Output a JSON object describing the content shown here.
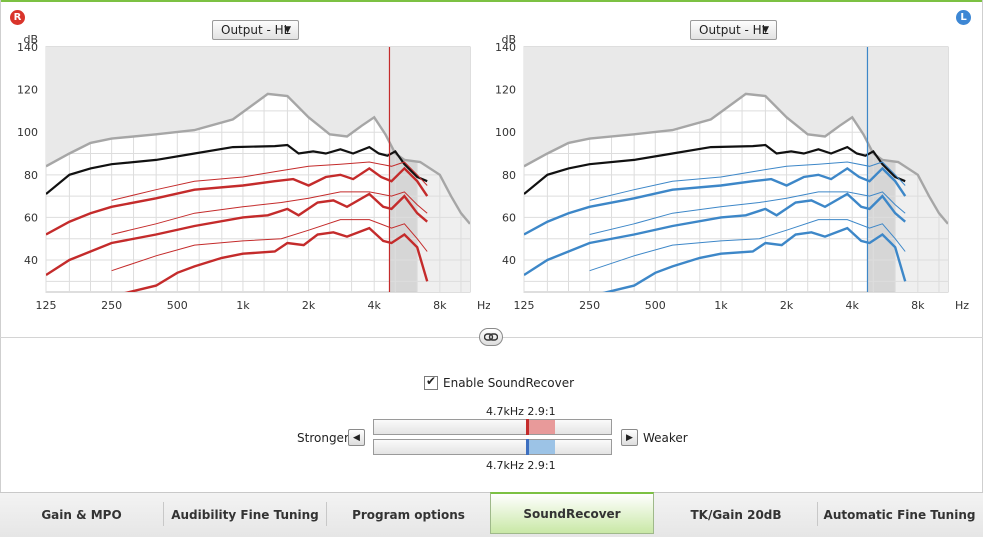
{
  "badges": {
    "right": "R",
    "left": "L"
  },
  "right_chart": {
    "dropdown": "Output - HL",
    "y_unit": "dB",
    "y_ticks": [
      "140",
      "120",
      "100",
      "80",
      "60",
      "40"
    ],
    "x_unit": "Hz",
    "x_ticks": [
      "125",
      "250",
      "500",
      "1k",
      "2k",
      "4k",
      "8k"
    ],
    "color": "#c42b2b"
  },
  "left_chart": {
    "dropdown": "Output - HL",
    "y_unit": "dB",
    "y_ticks": [
      "140",
      "120",
      "100",
      "80",
      "60",
      "40"
    ],
    "x_unit": "Hz",
    "x_ticks": [
      "125",
      "250",
      "500",
      "1k",
      "2k",
      "4k",
      "8k"
    ],
    "color": "#3d87c8"
  },
  "chart_data": {
    "type": "line",
    "ylabel": "dB",
    "xlabel": "Hz",
    "x_scale": "log",
    "ylim": [
      25,
      140
    ],
    "xlim": [
      125,
      11000
    ],
    "curves": {
      "upper_gray": [
        [
          125,
          84
        ],
        [
          160,
          90
        ],
        [
          200,
          95
        ],
        [
          250,
          97
        ],
        [
          400,
          99
        ],
        [
          600,
          101
        ],
        [
          900,
          106
        ],
        [
          1300,
          118
        ],
        [
          1600,
          117
        ],
        [
          2000,
          107
        ],
        [
          2500,
          99
        ],
        [
          3000,
          98
        ],
        [
          3500,
          103
        ],
        [
          4000,
          107
        ],
        [
          4500,
          99
        ],
        [
          5000,
          90
        ],
        [
          5500,
          87
        ],
        [
          6500,
          86
        ],
        [
          8000,
          80
        ],
        [
          9000,
          70
        ],
        [
          10000,
          62
        ],
        [
          11000,
          57
        ]
      ],
      "black": [
        [
          125,
          71
        ],
        [
          160,
          80
        ],
        [
          200,
          83
        ],
        [
          250,
          85
        ],
        [
          400,
          87
        ],
        [
          600,
          90
        ],
        [
          900,
          93
        ],
        [
          1400,
          93.5
        ],
        [
          1600,
          94
        ],
        [
          1800,
          90
        ],
        [
          2100,
          91
        ],
        [
          2400,
          90
        ],
        [
          2800,
          92
        ],
        [
          3200,
          90
        ],
        [
          3800,
          93
        ],
        [
          4200,
          90
        ],
        [
          4600,
          89
        ],
        [
          5000,
          91
        ],
        [
          5500,
          85
        ],
        [
          6300,
          79
        ],
        [
          7000,
          77
        ]
      ],
      "soft_thick": [
        [
          125,
          52
        ],
        [
          160,
          58
        ],
        [
          200,
          62
        ],
        [
          250,
          65
        ],
        [
          400,
          69
        ],
        [
          600,
          73
        ],
        [
          1000,
          75
        ],
        [
          1400,
          77
        ],
        [
          1700,
          78
        ],
        [
          2000,
          75
        ],
        [
          2400,
          79
        ],
        [
          2800,
          80
        ],
        [
          3200,
          78
        ],
        [
          3800,
          83
        ],
        [
          4300,
          79
        ],
        [
          4800,
          77
        ],
        [
          5500,
          83
        ],
        [
          6300,
          77
        ],
        [
          7000,
          70
        ]
      ],
      "soft_thin": [
        [
          250,
          68
        ],
        [
          400,
          73
        ],
        [
          600,
          77
        ],
        [
          1000,
          79
        ],
        [
          1500,
          82
        ],
        [
          2000,
          84
        ],
        [
          2800,
          85
        ],
        [
          3800,
          86
        ],
        [
          4800,
          84
        ],
        [
          5500,
          86
        ],
        [
          6300,
          80
        ],
        [
          7000,
          75
        ]
      ],
      "avg_thick": [
        [
          125,
          33
        ],
        [
          160,
          40
        ],
        [
          200,
          44
        ],
        [
          250,
          48
        ],
        [
          400,
          52
        ],
        [
          600,
          56
        ],
        [
          1000,
          60
        ],
        [
          1300,
          61
        ],
        [
          1600,
          64
        ],
        [
          1800,
          61
        ],
        [
          2200,
          67
        ],
        [
          2600,
          68
        ],
        [
          3000,
          65
        ],
        [
          3800,
          71
        ],
        [
          4400,
          65
        ],
        [
          4800,
          64
        ],
        [
          5500,
          70
        ],
        [
          6300,
          62
        ],
        [
          7000,
          58
        ]
      ],
      "avg_thin": [
        [
          250,
          52
        ],
        [
          400,
          57
        ],
        [
          600,
          62
        ],
        [
          1000,
          65
        ],
        [
          1500,
          67
        ],
        [
          2000,
          69
        ],
        [
          2800,
          72
        ],
        [
          3800,
          72
        ],
        [
          4800,
          70
        ],
        [
          5500,
          72
        ],
        [
          6300,
          66
        ],
        [
          7000,
          62
        ]
      ],
      "loud_thick": [
        [
          250,
          23
        ],
        [
          400,
          28
        ],
        [
          500,
          34
        ],
        [
          600,
          37
        ],
        [
          800,
          41
        ],
        [
          1000,
          43
        ],
        [
          1400,
          44
        ],
        [
          1600,
          48
        ],
        [
          1900,
          47
        ],
        [
          2200,
          52
        ],
        [
          2600,
          53
        ],
        [
          3000,
          51
        ],
        [
          3800,
          55
        ],
        [
          4400,
          49
        ],
        [
          4800,
          48
        ],
        [
          5500,
          52
        ],
        [
          6300,
          46
        ],
        [
          7000,
          30
        ]
      ],
      "loud_thin": [
        [
          250,
          35
        ],
        [
          400,
          42
        ],
        [
          600,
          47
        ],
        [
          1000,
          49
        ],
        [
          1500,
          50
        ],
        [
          2000,
          54
        ],
        [
          2800,
          59
        ],
        [
          3800,
          59
        ],
        [
          4800,
          55
        ],
        [
          5500,
          57
        ],
        [
          6300,
          50
        ],
        [
          7000,
          44
        ]
      ]
    },
    "cutoff_hz": 4700,
    "ratio": "2.9:1"
  },
  "soundrecover": {
    "enable_label": "Enable SoundRecover",
    "enabled": true,
    "right_setting": "4.7kHz  2.9:1",
    "left_setting": "4.7kHz  2.9:1",
    "stronger_label": "Stronger",
    "weaker_label": "Weaker",
    "right_color": "#c42b2b",
    "left_color": "#3d6fc0"
  },
  "tabs": [
    "Gain & MPO",
    "Audibility Fine Tuning",
    "Program options",
    "SoundRecover",
    "TK/Gain 20dB",
    "Automatic Fine Tuning"
  ],
  "active_tab": "SoundRecover"
}
